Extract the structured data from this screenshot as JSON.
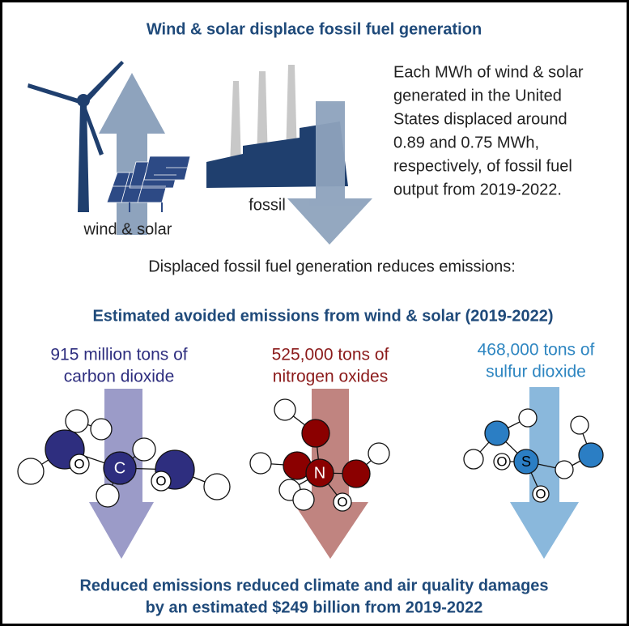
{
  "title": "Wind & solar displace fossil fuel generation",
  "labels": {
    "wind_solar": "wind & solar",
    "fossil": "fossil"
  },
  "description": [
    "Each MWh of wind & solar",
    "generated in the United",
    "States displaced around",
    "0.89 and 0.75 MWh,",
    "respectively, of fossil fuel",
    "output from 2019-2022."
  ],
  "subheading": "Displaced fossil fuel generation reduces emissions:",
  "emissions_title": "Estimated avoided emissions from wind & solar (2019-2022)",
  "emissions": [
    {
      "lines": [
        "915 million tons of",
        "carbon dioxide"
      ],
      "atoms": [
        "O",
        "C",
        "O"
      ]
    },
    {
      "lines": [
        "525,000 tons of",
        "nitrogen oxides"
      ],
      "atoms": [
        "N",
        "O"
      ]
    },
    {
      "lines": [
        "468,000 tons of",
        "sulfur dioxide"
      ],
      "atoms": [
        "O",
        "S",
        "O"
      ]
    }
  ],
  "footer": [
    "Reduced emissions reduced climate and air quality damages",
    "by an estimated $249 billion from 2019-2022"
  ]
}
